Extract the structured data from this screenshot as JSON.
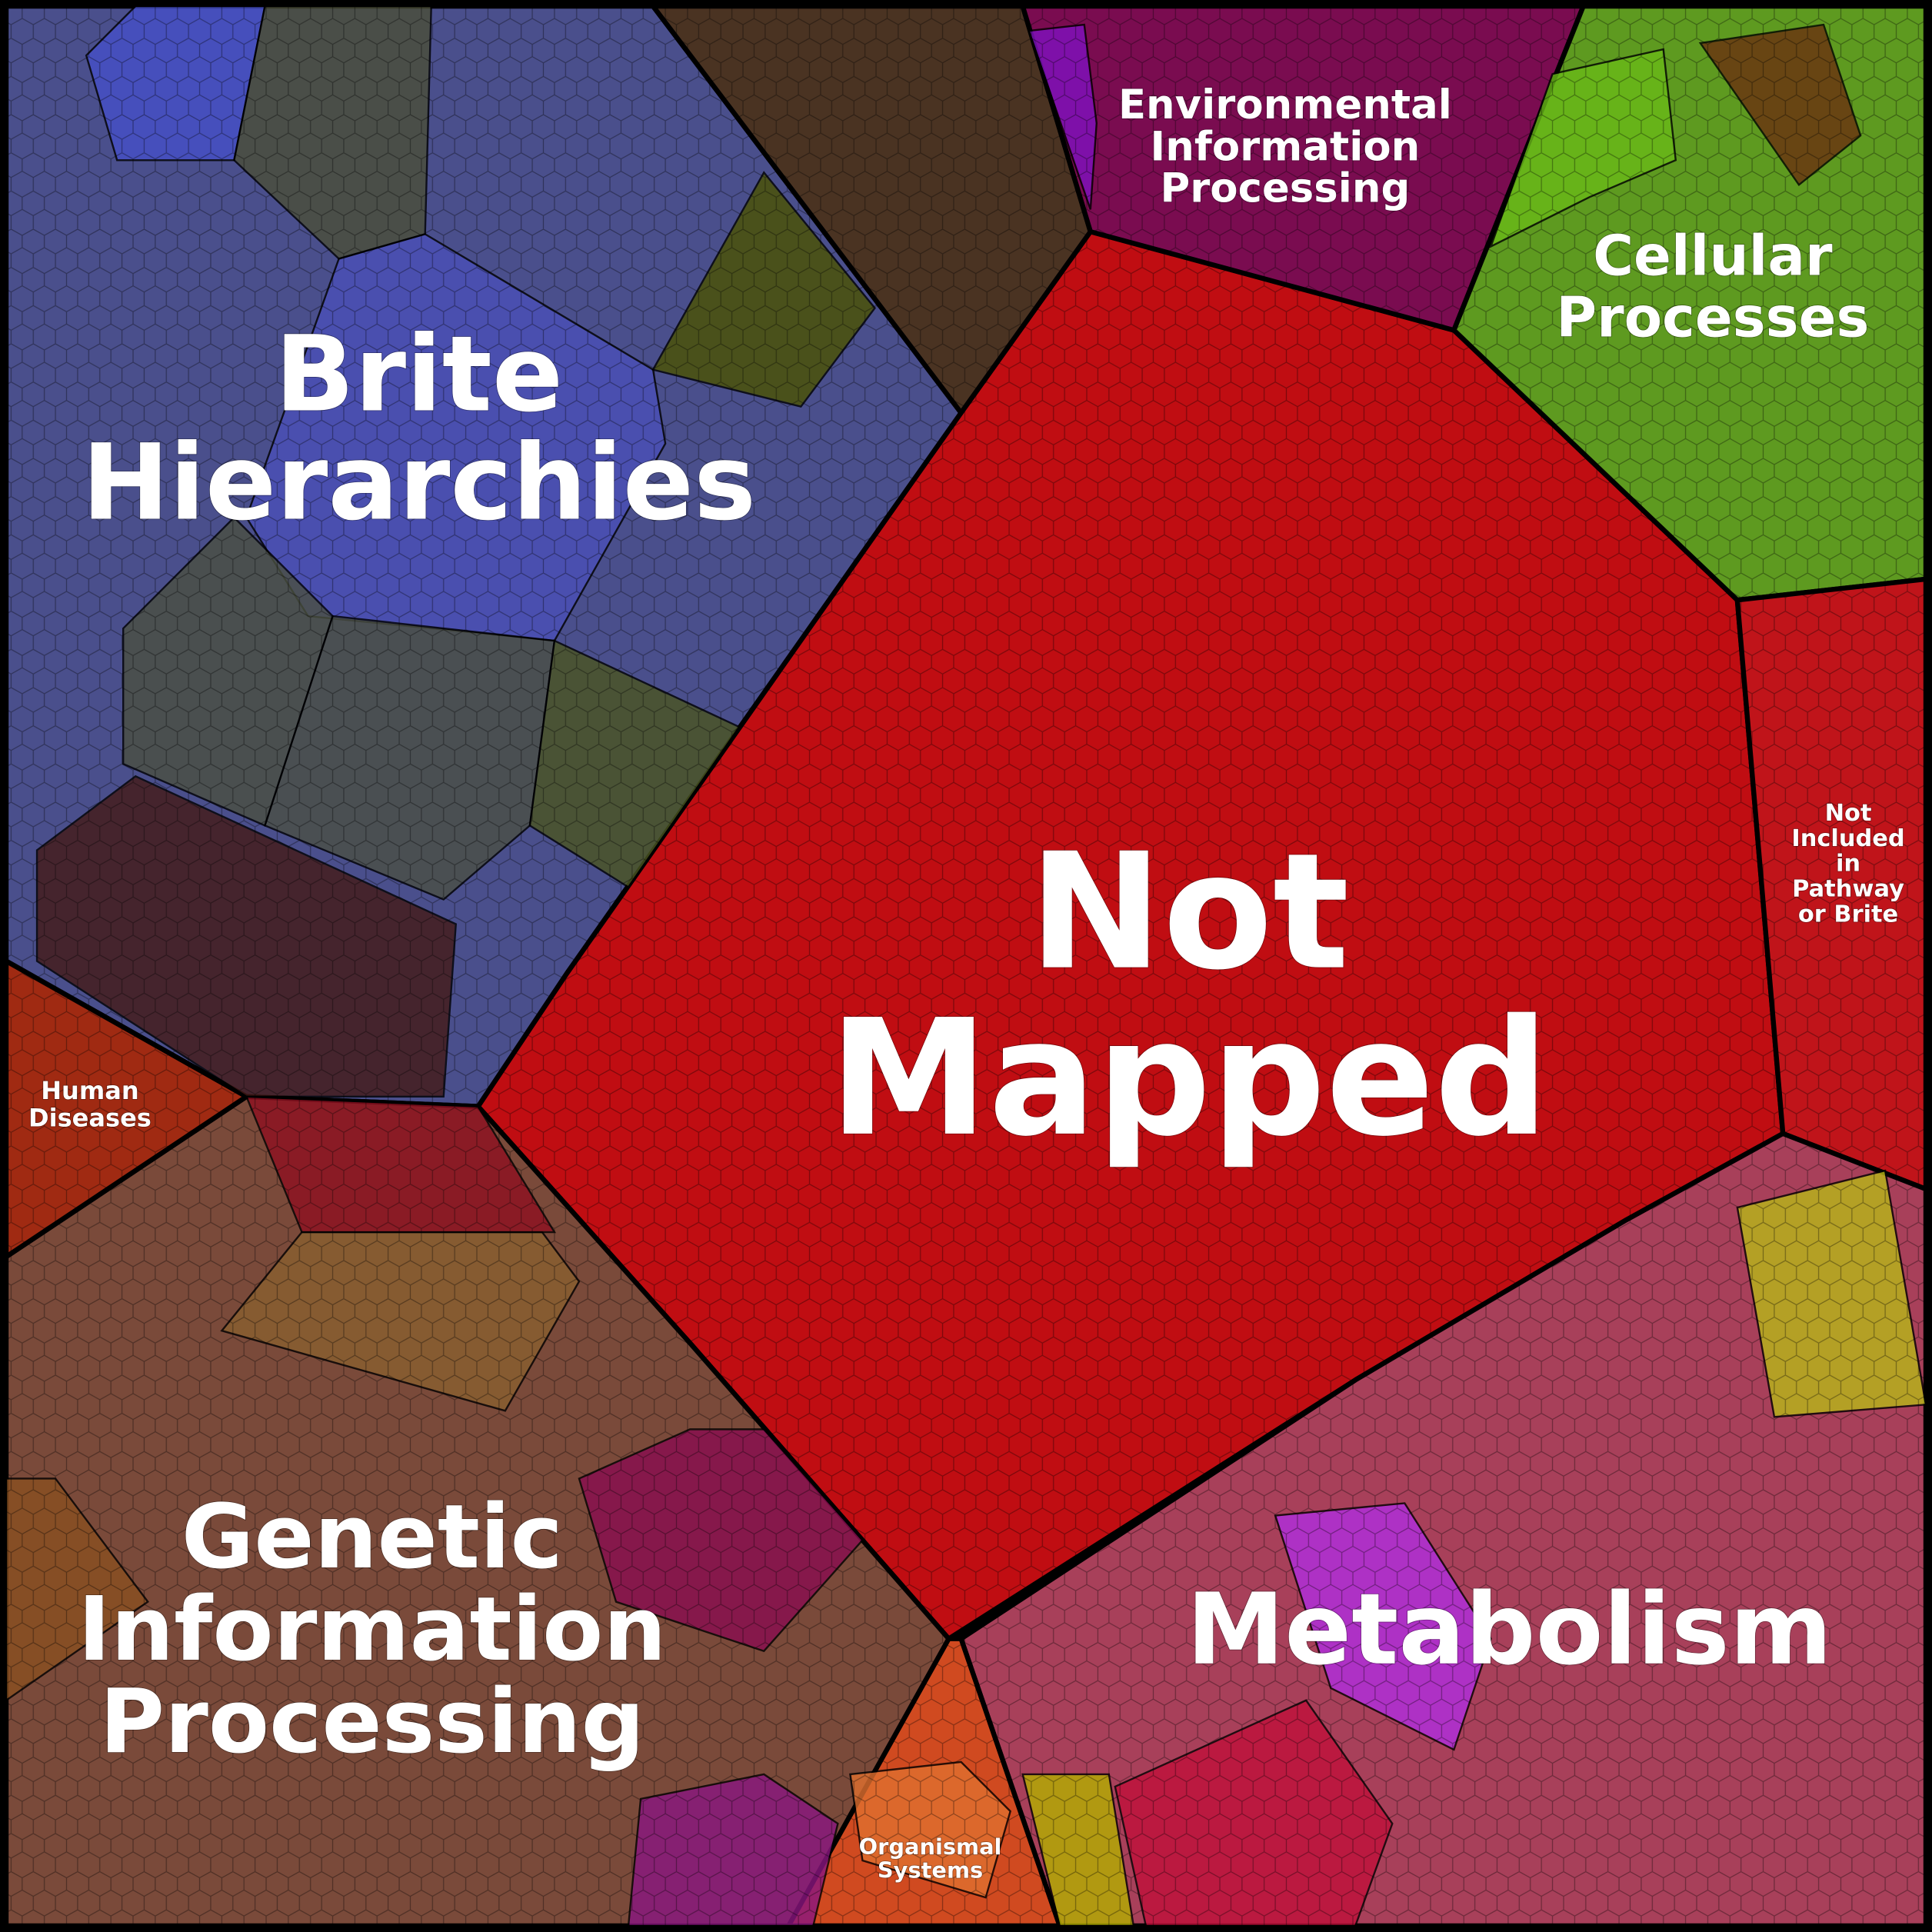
{
  "regions": [
    {
      "label": [
        "Not",
        "Mapped"
      ]
    },
    {
      "label": [
        "Brite",
        "Hierarchies"
      ]
    },
    {
      "label": [
        "Environmental",
        "Information",
        "Processing"
      ]
    },
    {
      "label": [
        "Cellular",
        "Processes"
      ]
    },
    {
      "label": [
        "Not",
        "Included",
        "in",
        "Pathway",
        "or Brite"
      ]
    },
    {
      "label": [
        "Human",
        "Diseases"
      ]
    },
    {
      "label": [
        "Genetic",
        "Information",
        "Processing"
      ]
    },
    {
      "label": [
        "Metabolism"
      ]
    },
    {
      "label": [
        "Organismal",
        "Systems"
      ]
    }
  ]
}
